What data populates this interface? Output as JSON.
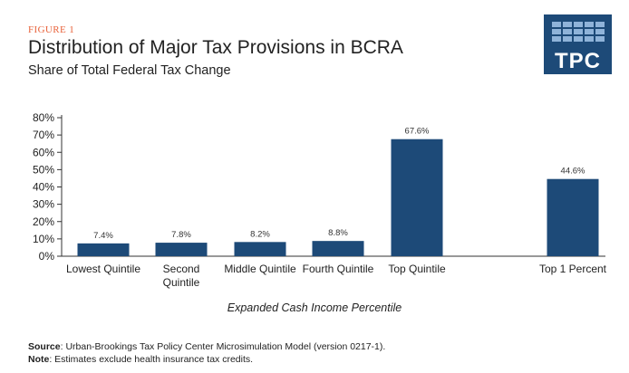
{
  "header": {
    "figure_label": "FIGURE 1",
    "title": "Distribution of Major Tax Provisions in BCRA",
    "subtitle": "Share of Total Federal Tax Change"
  },
  "logo": {
    "text": "TPC",
    "color": "#1d4a78"
  },
  "chart_data": {
    "type": "bar",
    "title": "Distribution of Major Tax Provisions in BCRA",
    "subtitle": "Share of Total Federal Tax Change",
    "xlabel": "Expanded Cash Income Percentile",
    "ylabel": "",
    "categories": [
      [
        "Lowest Quintile"
      ],
      [
        "Second",
        "Quintile"
      ],
      [
        "Middle Quintile"
      ],
      [
        "Fourth Quintile"
      ],
      [
        "Top Quintile"
      ],
      [
        "Top 1 Percent"
      ]
    ],
    "values": [
      7.4,
      7.8,
      8.2,
      8.8,
      67.6,
      44.6
    ],
    "data_labels": [
      "7.4%",
      "7.8%",
      "8.2%",
      "8.8%",
      "67.6%",
      "44.6%"
    ],
    "y_ticks": [
      "0%",
      "10%",
      "20%",
      "30%",
      "40%",
      "50%",
      "60%",
      "70%",
      "80%"
    ],
    "ylim": [
      0,
      80
    ],
    "bar_color": "#1d4a78",
    "grid": false,
    "legend": "none"
  },
  "footnotes": {
    "source_label": "Source",
    "source_text": ": Urban-Brookings Tax Policy Center Microsimulation Model (version 0217-1).",
    "note_label": "Note",
    "note_text": ": Estimates exclude health insurance tax credits."
  }
}
